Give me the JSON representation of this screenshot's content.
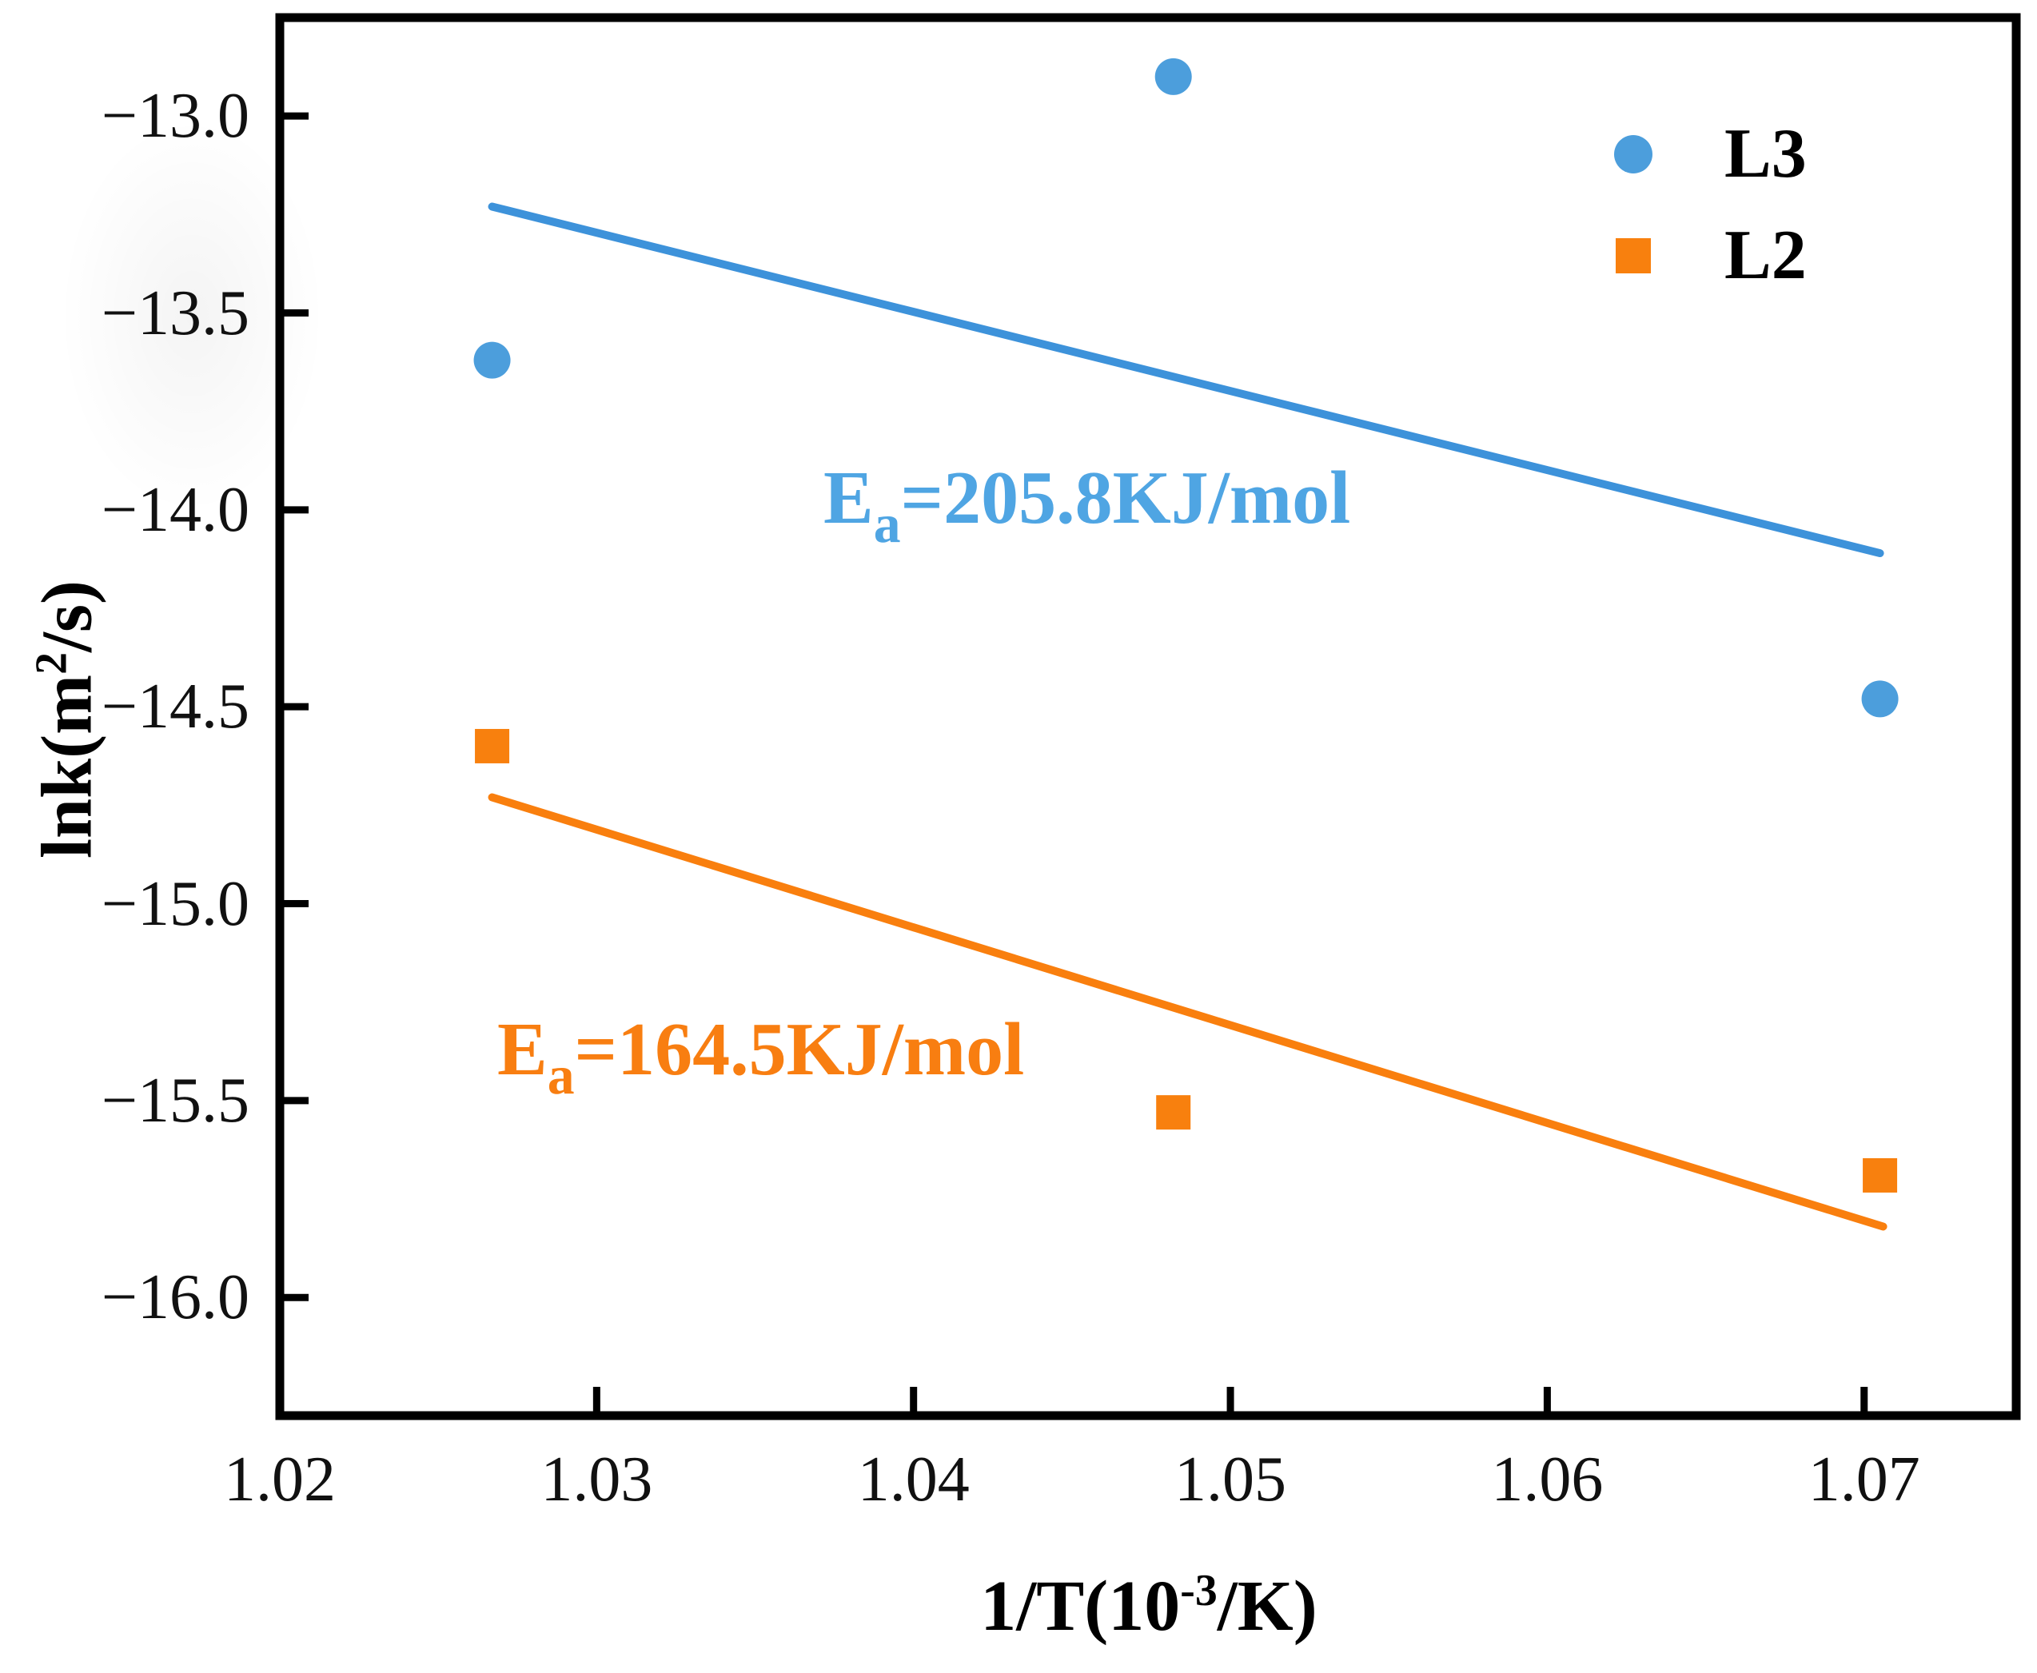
{
  "chart_data": {
    "type": "scatter",
    "title": "",
    "xlabel_parts": {
      "pre": "1/T(10",
      "sup": "-3",
      "post": "/K)"
    },
    "ylabel_parts": {
      "pre": "lnk(m",
      "sup": "2",
      "post": "/s)"
    },
    "xlim": [
      1.02,
      1.0748
    ],
    "ylim": [
      -16.3,
      -12.75
    ],
    "x_ticks": [
      1.02,
      1.03,
      1.04,
      1.05,
      1.06,
      1.07
    ],
    "x_tick_labels": [
      "1.02",
      "1.03",
      "1.04",
      "1.05",
      "1.06",
      "1.07"
    ],
    "y_ticks": [
      -13.0,
      -13.5,
      -14.0,
      -14.5,
      -15.0,
      -15.5,
      -16.0
    ],
    "y_tick_labels": [
      "−13.0",
      "−13.5",
      "−14.0",
      "−14.5",
      "−15.0",
      "−15.5",
      "−16.0"
    ],
    "grid": false,
    "legend_position": "upper-right-inside",
    "series": [
      {
        "name": "L3",
        "marker": "circle",
        "color": "#4C9EDC",
        "line_color": "#3D92DA",
        "points": [
          [
            1.0267,
            -13.62
          ],
          [
            1.0482,
            -12.9
          ],
          [
            1.0705,
            -14.48
          ]
        ],
        "fit_line": [
          [
            1.0267,
            -13.23
          ],
          [
            1.0705,
            -14.11
          ]
        ],
        "annotation": {
          "pre": "E",
          "sub": "a",
          "rest": "=205.8KJ/mol"
        },
        "annotation_color": "#4FA5E3"
      },
      {
        "name": "L2",
        "marker": "square",
        "color": "#F8800E",
        "line_color": "#F97F0E",
        "points": [
          [
            1.0267,
            -14.6
          ],
          [
            1.0482,
            -15.53
          ],
          [
            1.0705,
            -15.69
          ]
        ],
        "fit_line": [
          [
            1.0267,
            -14.73
          ],
          [
            1.0706,
            -15.82
          ]
        ],
        "annotation": {
          "pre": "E",
          "sub": "a",
          "rest": "=164.5KJ/mol"
        },
        "annotation_color": "#F87E11"
      }
    ]
  }
}
